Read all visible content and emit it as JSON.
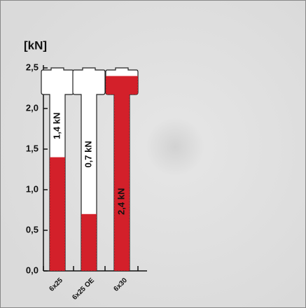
{
  "chart_data": {
    "type": "bolt-bar",
    "title": "[kN]",
    "categories": [
      "6x25",
      "6x25 OE",
      "6x30"
    ],
    "values": [
      1.4,
      0.7,
      2.4
    ],
    "value_labels": [
      "1,4 kN",
      "0,7 kN",
      "2,4 kN"
    ],
    "color": "#d3202a",
    "ylim": [
      0,
      2.5
    ],
    "yticks": [
      {
        "value": 0,
        "label": "0,0"
      },
      {
        "value": 0.5,
        "label": "0,5"
      },
      {
        "value": 1,
        "label": "1,0"
      },
      {
        "value": 1.5,
        "label": "1,5"
      },
      {
        "value": 2,
        "label": "2,0"
      },
      {
        "value": 2.5,
        "label": "2,5"
      }
    ]
  }
}
